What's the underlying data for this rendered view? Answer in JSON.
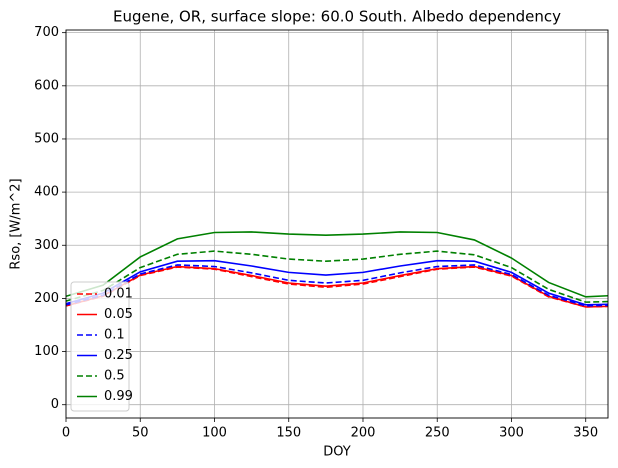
{
  "chart_data": {
    "type": "line",
    "title": "Eugene, OR, surface slope: 60.0 South. Albedo dependency",
    "x_label": "DOY",
    "y_label": "Rso, [W/m^2]",
    "x": [
      0,
      25,
      50,
      75,
      100,
      125,
      150,
      175,
      200,
      225,
      250,
      275,
      300,
      325,
      350,
      365
    ],
    "series": [
      {
        "name": "0.01",
        "color": "#ff0000",
        "dash": true,
        "values": [
          186,
          204,
          243,
          259,
          255,
          241,
          227,
          221,
          227,
          241,
          255,
          259,
          242,
          203,
          184,
          185
        ]
      },
      {
        "name": "0.05",
        "color": "#ff0000",
        "dash": false,
        "values": [
          186,
          205,
          244,
          260,
          256,
          243,
          229,
          223,
          229,
          243,
          256,
          260,
          243,
          204,
          184,
          185
        ]
      },
      {
        "name": "0.1",
        "color": "#0000ff",
        "dash": true,
        "values": [
          188,
          206,
          246,
          263,
          260,
          248,
          234,
          229,
          234,
          248,
          260,
          263,
          245,
          206,
          186,
          187
        ]
      },
      {
        "name": "0.25",
        "color": "#0000ff",
        "dash": false,
        "values": [
          190,
          210,
          250,
          270,
          271,
          261,
          249,
          244,
          249,
          261,
          271,
          270,
          249,
          210,
          188,
          189
        ]
      },
      {
        "name": "0.5",
        "color": "#008000",
        "dash": true,
        "values": [
          195,
          215,
          258,
          283,
          289,
          283,
          274,
          270,
          274,
          283,
          289,
          282,
          258,
          217,
          193,
          194
        ]
      },
      {
        "name": "0.99",
        "color": "#008000",
        "dash": false,
        "values": [
          204,
          225,
          278,
          312,
          324,
          325,
          321,
          319,
          321,
          325,
          324,
          310,
          276,
          230,
          203,
          205
        ]
      }
    ],
    "xlim": [
      0,
      365
    ],
    "ylim": [
      -25,
      705
    ],
    "xticks": [
      0,
      50,
      100,
      150,
      200,
      250,
      300,
      350
    ],
    "yticks": [
      0,
      100,
      200,
      300,
      400,
      500,
      600,
      700
    ],
    "grid": true,
    "legend": "lower left"
  }
}
